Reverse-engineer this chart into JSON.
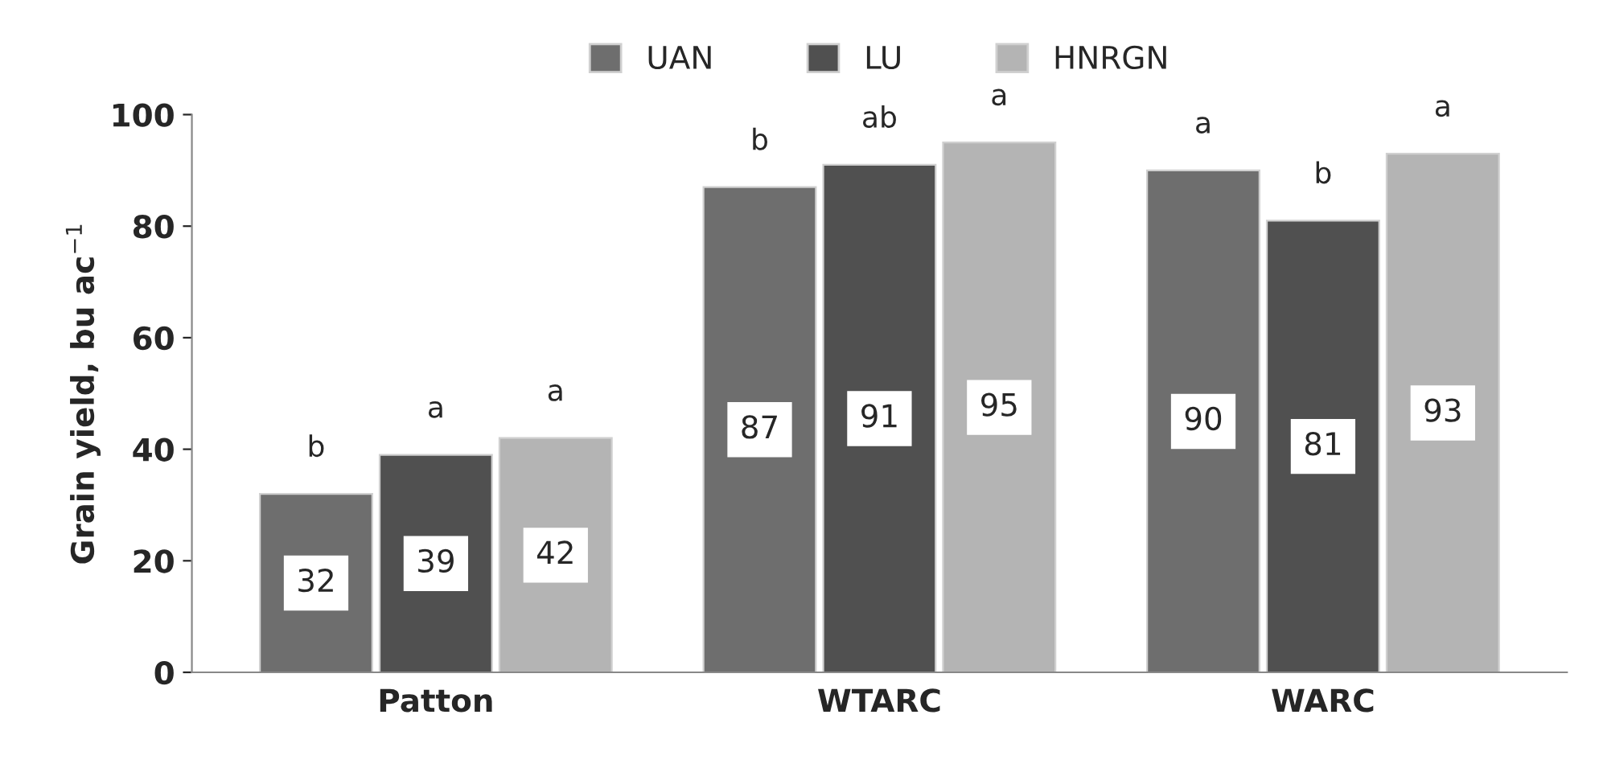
{
  "chart_data": {
    "type": "bar",
    "ylabel": "Grain yield, bu ac$^{−1}$",
    "categories": [
      "Patton",
      "WTARC",
      "WARC"
    ],
    "series": [
      {
        "name": "UAN",
        "color": "#6e6e6e",
        "values": [
          32,
          87,
          90
        ]
      },
      {
        "name": "LU",
        "color": "#505050",
        "values": [
          39,
          91,
          81
        ]
      },
      {
        "name": "HNRGN",
        "color": "#b4b4b4",
        "values": [
          42,
          95,
          93
        ]
      }
    ],
    "ylim": [
      0,
      100
    ],
    "yticks": [
      0,
      20,
      40,
      60,
      80,
      100
    ],
    "data_labels": true,
    "legend": "top",
    "grid": false,
    "annotations": [
      "b",
      "a",
      "a",
      "b",
      "ab",
      "a",
      "a",
      "b",
      "a"
    ]
  }
}
